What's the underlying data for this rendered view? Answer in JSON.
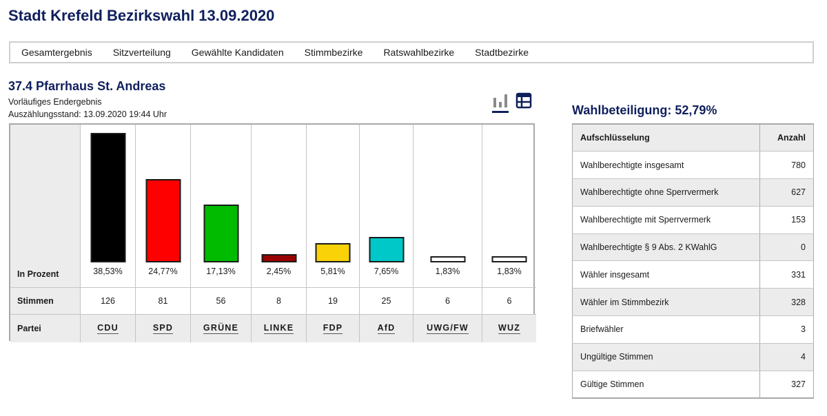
{
  "header": {
    "title": "Stadt Krefeld Bezirkswahl 13.09.2020"
  },
  "nav": {
    "items": [
      "Gesamtergebnis",
      "Sitzverteilung",
      "Gewählte Kandidaten",
      "Stimmbezirke",
      "Ratswahlbezirke",
      "Stadtbezirke"
    ]
  },
  "district": {
    "title": "37.4 Pfarrhaus St. Andreas",
    "status": "Vorläufiges Endergebnis",
    "counted": "Auszählungsstand: 13.09.2020 19:44 Uhr"
  },
  "view_toggle": {
    "chart_icon": "bar-chart-icon",
    "table_icon": "table-icon",
    "active": "chart"
  },
  "results": {
    "row_labels": {
      "percent": "In Prozent",
      "votes": "Stimmen",
      "party": "Partei"
    }
  },
  "chart_data": {
    "type": "bar",
    "title": "",
    "xlabel": "Partei",
    "ylabel": "In Prozent",
    "ylim": [
      0,
      38.53
    ],
    "grid": false,
    "categories": [
      "CDU",
      "SPD",
      "GRÜNE",
      "LINKE",
      "FDP",
      "AfD",
      "UWG/FW",
      "WUZ"
    ],
    "values": [
      38.53,
      24.77,
      17.13,
      2.45,
      5.81,
      7.65,
      1.83,
      1.83
    ],
    "value_labels": [
      "38,53%",
      "24,77%",
      "17,13%",
      "2,45%",
      "5,81%",
      "7,65%",
      "1,83%",
      "1,83%"
    ],
    "votes": [
      "126",
      "81",
      "56",
      "8",
      "19",
      "25",
      "6",
      "6"
    ],
    "colors": [
      "#000000",
      "#ff0000",
      "#00bb00",
      "#990000",
      "#f9d208",
      "#00c8c8",
      "#ffffff",
      "#ffffff"
    ]
  },
  "turnout": {
    "title": "Wahlbeteiligung: 52,79%",
    "headers": {
      "label": "Aufschlüsselung",
      "value": "Anzahl"
    },
    "rows": [
      {
        "label": "Wahlberechtigte insgesamt",
        "value": "780"
      },
      {
        "label": "Wahlberechtigte ohne Sperrvermerk",
        "value": "627"
      },
      {
        "label": "Wahlberechtigte mit Sperrvermerk",
        "value": "153"
      },
      {
        "label": "Wahlberechtigte § 9 Abs. 2 KWahlG",
        "value": "0"
      },
      {
        "label": "Wähler insgesamt",
        "value": "331"
      },
      {
        "label": "Wähler im Stimmbezirk",
        "value": "328"
      },
      {
        "label": "Briefwähler",
        "value": "3"
      },
      {
        "label": "Ungültige Stimmen",
        "value": "4"
      },
      {
        "label": "Gültige Stimmen",
        "value": "327"
      }
    ]
  }
}
